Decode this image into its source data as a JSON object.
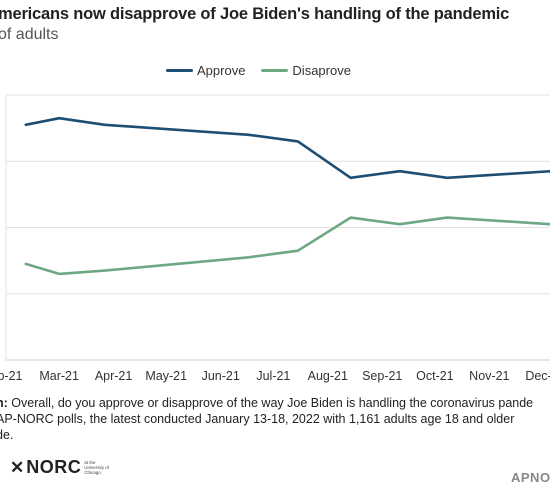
{
  "title": "mericans now disapprove of Joe Biden's handling of the pandemic",
  "subtitle": "of adults",
  "chart_data": {
    "type": "line",
    "categories": [
      "b-21",
      "Mar-21",
      "Apr-21",
      "May-21",
      "Jun-21",
      "Jul-21",
      "Aug-21",
      "Sep-21",
      "Oct-21",
      "Nov-21",
      "Dec-2"
    ],
    "series": [
      {
        "name": "Approve",
        "color": "#1d4e74",
        "points": [
          {
            "x": "2021-02-10",
            "y": 71
          },
          {
            "x": "2021-03-01",
            "y": 73
          },
          {
            "x": "2021-03-27",
            "y": 71
          },
          {
            "x": "2021-06-17",
            "y": 68
          },
          {
            "x": "2021-07-15",
            "y": 66
          },
          {
            "x": "2021-08-14",
            "y": 55
          },
          {
            "x": "2021-09-11",
            "y": 57
          },
          {
            "x": "2021-10-08",
            "y": 55
          },
          {
            "x": "2021-12-06",
            "y": 57
          },
          {
            "x": "2021-12-10",
            "y": 55
          }
        ]
      },
      {
        "name": "Disaprove",
        "color": "#6ea883",
        "points": [
          {
            "x": "2021-02-10",
            "y": 29
          },
          {
            "x": "2021-03-01",
            "y": 26
          },
          {
            "x": "2021-03-27",
            "y": 27
          },
          {
            "x": "2021-06-17",
            "y": 31
          },
          {
            "x": "2021-07-15",
            "y": 33
          },
          {
            "x": "2021-08-14",
            "y": 43
          },
          {
            "x": "2021-09-11",
            "y": 41
          },
          {
            "x": "2021-10-08",
            "y": 43
          },
          {
            "x": "2021-12-06",
            "y": 41
          },
          {
            "x": "2021-12-10",
            "y": 44
          }
        ]
      }
    ],
    "ylim": [
      0,
      80
    ],
    "grid": true,
    "legend_position": "top"
  },
  "footnote": {
    "question_label": "n:",
    "question_text": " Overall, do you approve or disapprove of the way Joe Biden is handling the coronavirus pande",
    "source_line": " AP-NORC polls, the latest conducted January 13-18, 2022 with 1,161 adults age 18 and older",
    "source_line_2": "de."
  },
  "logo": {
    "mark": "✕",
    "name": "NORC",
    "sub": "at the University of Chicago"
  },
  "credit": "APNORC"
}
